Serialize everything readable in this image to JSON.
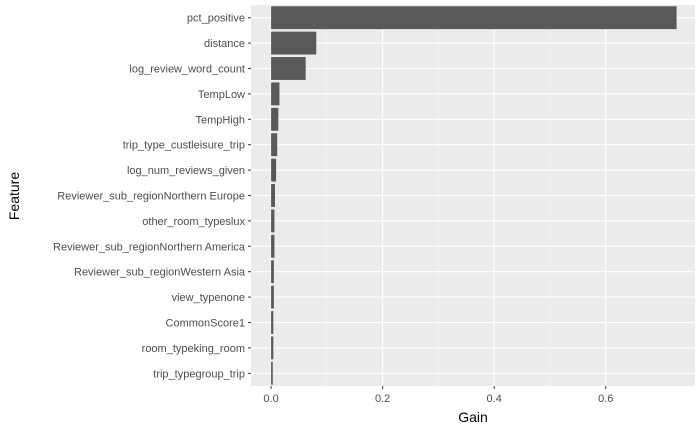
{
  "chart_data": {
    "type": "bar",
    "orientation": "horizontal",
    "xlabel": "Gain",
    "ylabel": "Feature",
    "xlim": [
      -0.036,
      0.76
    ],
    "x_ticks": [
      "0.0",
      "0.2",
      "0.4",
      "0.6"
    ],
    "x_tick_values": [
      0,
      0.2,
      0.4,
      0.6
    ],
    "grid": true,
    "categories": [
      "pct_positive",
      "distance",
      "log_review_word_count",
      "TempLow",
      "TempHigh",
      "trip_type_custleisure_trip",
      "log_num_reviews_given",
      "Reviewer_sub_regionNorthern Europe",
      "other_room_typeslux",
      "Reviewer_sub_regionNorthern America",
      "Reviewer_sub_regionWestern Asia",
      "view_typenone",
      "CommonScore1",
      "room_typeking_room",
      "trip_typegroup_trip"
    ],
    "values": [
      0.727,
      0.081,
      0.062,
      0.015,
      0.013,
      0.011,
      0.009,
      0.007,
      0.006,
      0.006,
      0.005,
      0.005,
      0.004,
      0.004,
      0.003
    ],
    "colors": {
      "panel": "#ebebeb",
      "grid_major": "#ffffff",
      "grid_minor": "#f5f5f5",
      "bar": "#595959",
      "tick": "#333333"
    }
  }
}
